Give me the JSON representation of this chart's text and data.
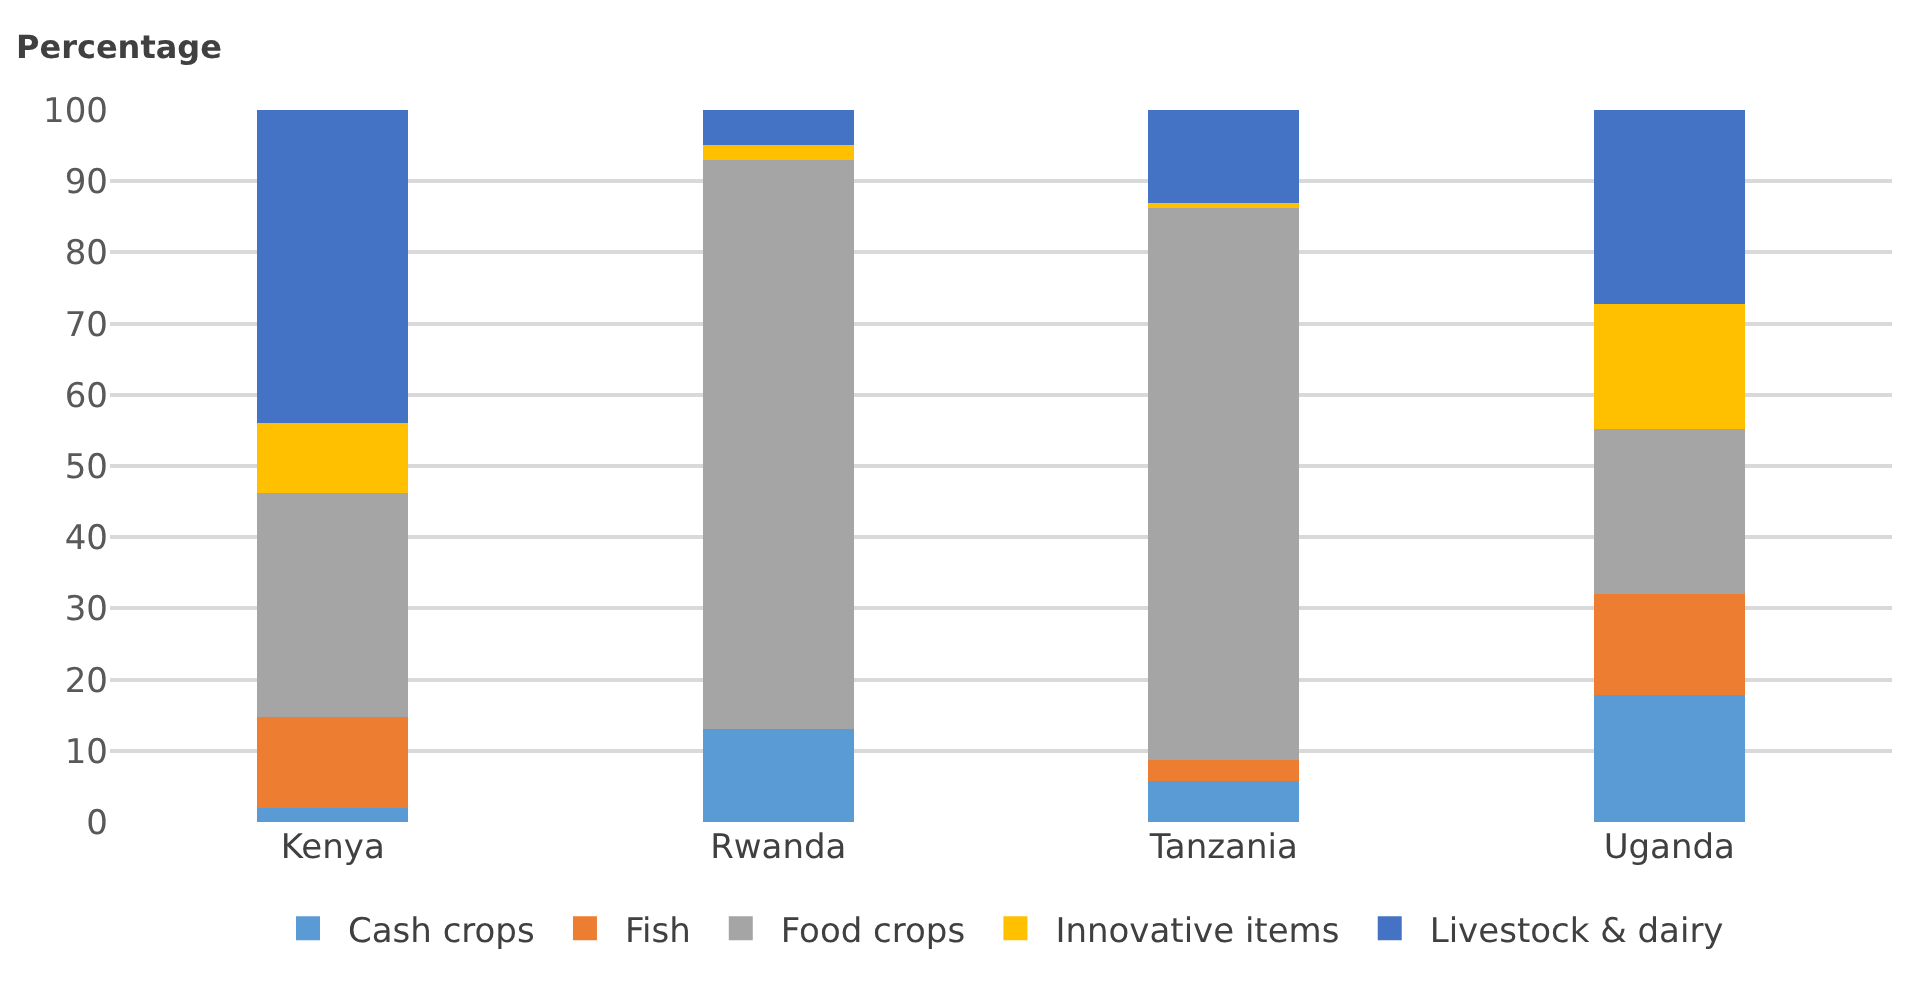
{
  "chart_data": {
    "type": "bar",
    "stacked": true,
    "ylabel": "Percentage",
    "categories": [
      "Kenya",
      "Rwanda",
      "Tanzania",
      "Uganda"
    ],
    "series": [
      {
        "name": "Cash crops",
        "color": "#5b9bd5",
        "values": [
          2,
          13,
          5.7,
          17.8
        ]
      },
      {
        "name": "Fish",
        "color": "#ed7d31",
        "values": [
          12.8,
          0,
          3,
          14.2
        ]
      },
      {
        "name": "Food crops",
        "color": "#a5a5a5",
        "values": [
          31.4,
          80,
          77.8,
          23.2
        ]
      },
      {
        "name": "Innovative items",
        "color": "#ffc000",
        "values": [
          9.9,
          2.1,
          0.5,
          17.6
        ]
      },
      {
        "name": "Livestock & dairy",
        "color": "#4472c4",
        "values": [
          43.9,
          4.9,
          13,
          27.2
        ]
      }
    ],
    "ylim": [
      0,
      100
    ],
    "yticks": [
      0,
      10,
      20,
      30,
      40,
      50,
      60,
      70,
      80,
      90,
      100
    ],
    "grid": "y",
    "legend": "bottom"
  }
}
